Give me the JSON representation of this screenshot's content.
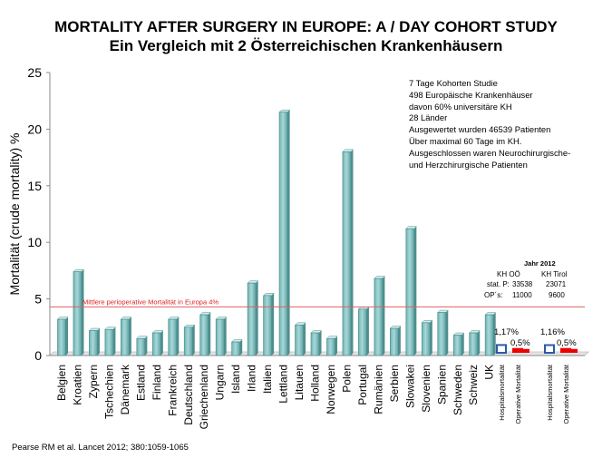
{
  "title_line1": "MORTALITY AFTER SURGERY IN EUROPE: A / DAY COHORT STUDY",
  "title_line2": "Ein Vergleich mit 2 Österreichischen Krankenhäusern",
  "citation": "Pearse RM et al. Lancet 2012; 380:1059-1065",
  "info_box": [
    "7 Tage Kohorten Studie",
    "498 Europäische Krankenhäuser",
    "davon 60% universitäre KH",
    "28 Länder",
    "Ausgewertet wurden 46539 Patienten",
    "Über maximal 60 Tage im KH.",
    "Ausgeschlossen waren Neurochirurgische-",
    "und Herzchirurgische  Patienten"
  ],
  "hospital_stats": {
    "year": "Jahr 2012",
    "col1": "KH OÖ",
    "col2": "KH Tirol",
    "row1_label": "stat. P:",
    "row1_v1": "33538",
    "row1_v2": "23071",
    "row2_label": "OP´s:",
    "row2_v1": "11000",
    "row2_v2": "9600"
  },
  "chart_data": {
    "type": "bar",
    "title": "",
    "ylabel": "Mortalität (crude mortality) %",
    "xlabel": "",
    "ylim": [
      0,
      25
    ],
    "yticks": [
      0,
      5,
      10,
      15,
      20,
      25
    ],
    "categories": [
      "Belgien",
      "Kroatien",
      "Zypern",
      "Tschechien",
      "Dänemark",
      "Estland",
      "Finland",
      "Frankreich",
      "Deutschland",
      "Griechenland",
      "Ungarn",
      "Island",
      "Irland",
      "Italien",
      "Lettland",
      "Litauen",
      "Holland",
      "Norwegen",
      "Polen",
      "Portugal",
      "Rumänien",
      "Serbien",
      "Slowakei",
      "Slovenien",
      "Spanien",
      "Schweden",
      "Schweiz",
      "UK"
    ],
    "values": [
      3.2,
      7.4,
      2.2,
      2.3,
      3.2,
      1.5,
      2.0,
      3.2,
      2.5,
      3.6,
      3.2,
      1.2,
      6.4,
      5.3,
      21.5,
      2.7,
      2.0,
      1.5,
      18.0,
      4.1,
      6.8,
      2.4,
      11.2,
      2.9,
      3.8,
      1.8,
      2.0,
      3.6
    ],
    "reference_line": {
      "value": 4.3,
      "label": "Mittlere perioperative Mortalität in Europa 4%",
      "color": "#e06060"
    },
    "bar_color": "#a8d8d8",
    "hospital_groups": [
      {
        "hospital_label": "1,17%",
        "operative_label": "0,5%",
        "hospital_value": 1.17,
        "operative_value": 0.5,
        "x_labels": [
          "Hospitalsmortalität",
          "Operative Mortalität"
        ]
      },
      {
        "hospital_label": "1,16%",
        "operative_label": "0,5%",
        "hospital_value": 1.16,
        "operative_value": 0.5,
        "x_labels": [
          "Hospitalsmortalität",
          "Operative Mortalität"
        ]
      }
    ],
    "hospital_box_color": "#2a5aa8",
    "operative_box_color": "#ee0000"
  }
}
